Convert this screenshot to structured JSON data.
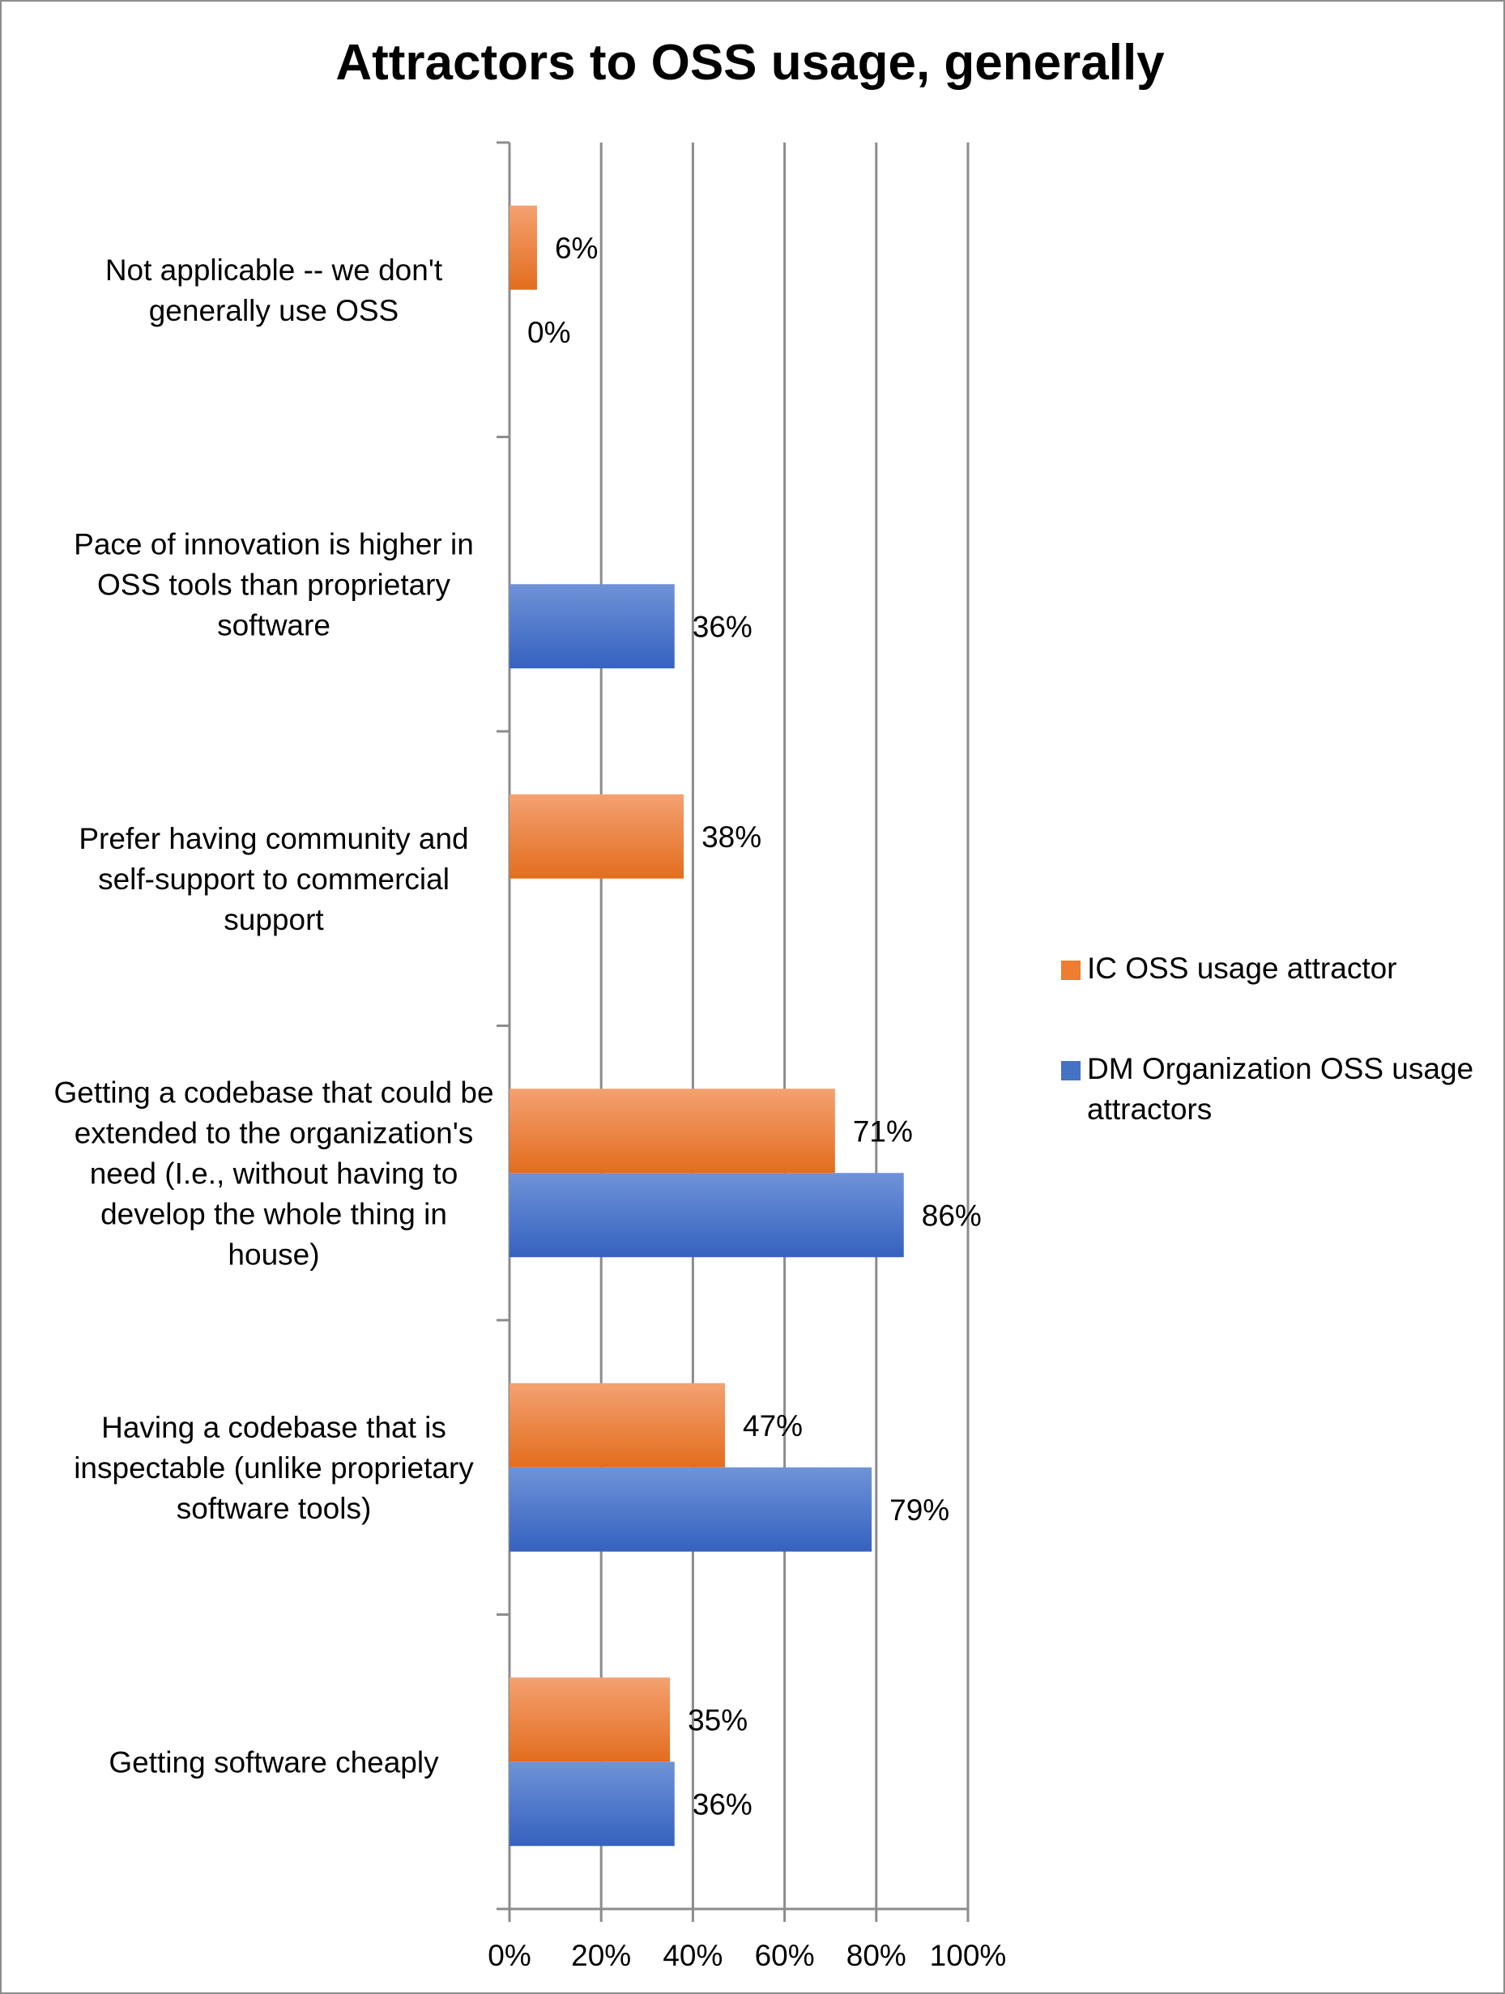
{
  "chart_data": {
    "type": "bar",
    "orientation": "horizontal",
    "title": "Attractors to OSS usage, generally",
    "xlabel": "",
    "ylabel": "",
    "xlim": [
      0,
      100
    ],
    "ticks": [
      "0%",
      "20%",
      "40%",
      "60%",
      "80%",
      "100%"
    ],
    "grid": true,
    "legend_position": "right",
    "categories": [
      [
        "Not applicable -- we don't",
        "generally use OSS"
      ],
      [
        "Pace of innovation is higher in",
        "OSS tools than proprietary",
        "software"
      ],
      [
        "Prefer having community and",
        "self-support to commercial",
        "support"
      ],
      [
        "Getting a codebase that could be",
        "extended to the organization's",
        "need (I.e., without having to",
        "develop the whole thing in",
        "house)"
      ],
      [
        "Having a codebase that is",
        "inspectable (unlike proprietary",
        "software tools)"
      ],
      [
        "Getting software cheaply"
      ]
    ],
    "series": [
      {
        "name": "IC OSS usage attractor",
        "color": "#ed7d31",
        "values": [
          6,
          null,
          38,
          71,
          47,
          35
        ],
        "labels": [
          "6%",
          null,
          "38%",
          "71%",
          "47%",
          "35%"
        ]
      },
      {
        "name": "DM Organization OSS usage attractors",
        "color": "#4472c4",
        "values": [
          0,
          36,
          null,
          86,
          79,
          36
        ],
        "labels": [
          "0%",
          "36%",
          null,
          "86%",
          "79%",
          "36%"
        ]
      }
    ],
    "legend": [
      [
        "IC OSS usage attractor"
      ],
      [
        "DM Organization OSS usage",
        "attractors"
      ]
    ]
  }
}
